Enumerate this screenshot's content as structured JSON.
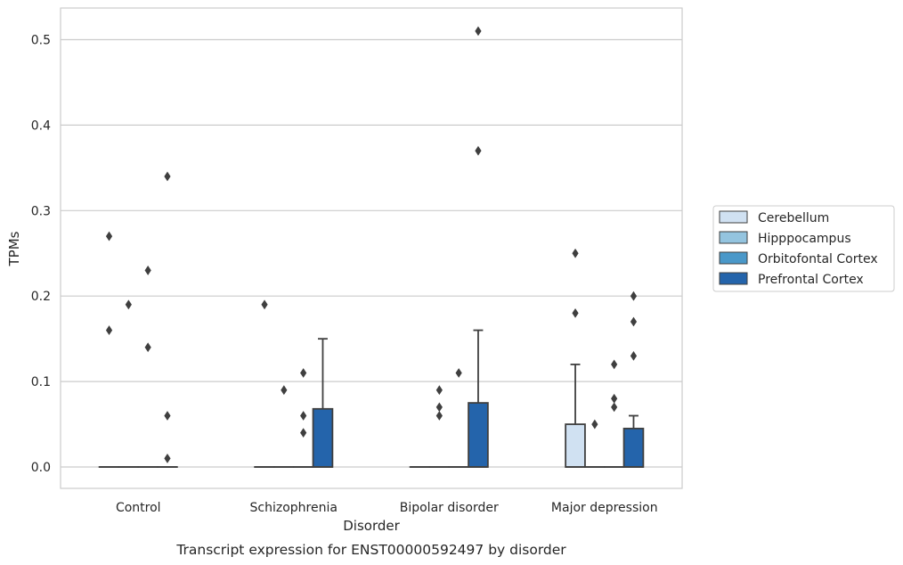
{
  "caption": "Transcript expression for ENST00000592497 by disorder",
  "chart_data": {
    "type": "box",
    "xlabel": "Disorder",
    "ylabel": "TPMs",
    "ylim": [
      -0.025,
      0.537
    ],
    "yticks": [
      "0.0",
      "0.1",
      "0.2",
      "0.3",
      "0.4",
      "0.5"
    ],
    "grid": true,
    "legend_position": "right",
    "categories": [
      "Control",
      "Schizophrenia",
      "Bipolar disorder",
      "Major depression"
    ],
    "series": [
      {
        "name": "Cerebellum",
        "color": "#d0e1f2"
      },
      {
        "name": "Hipppocampus",
        "color": "#94c4df"
      },
      {
        "name": "Orbitofontal Cortex",
        "color": "#4a98c9"
      },
      {
        "name": "Prefrontal Cortex",
        "color": "#2464ab"
      }
    ],
    "boxes": [
      {
        "category": "Control",
        "series": "Cerebellum",
        "q1": 0,
        "median": 0,
        "q3": 0,
        "whisker_low": 0,
        "whisker_high": 0,
        "outliers": [
          0.16,
          0.27
        ]
      },
      {
        "category": "Control",
        "series": "Hipppocampus",
        "q1": 0,
        "median": 0,
        "q3": 0,
        "whisker_low": 0,
        "whisker_high": 0,
        "outliers": [
          0.19
        ]
      },
      {
        "category": "Control",
        "series": "Orbitofontal Cortex",
        "q1": 0,
        "median": 0,
        "q3": 0,
        "whisker_low": 0,
        "whisker_high": 0,
        "outliers": [
          0.14,
          0.23
        ]
      },
      {
        "category": "Control",
        "series": "Prefrontal Cortex",
        "q1": 0,
        "median": 0,
        "q3": 0,
        "whisker_low": 0,
        "whisker_high": 0,
        "outliers": [
          0.01,
          0.06,
          0.34
        ]
      },
      {
        "category": "Schizophrenia",
        "series": "Cerebellum",
        "q1": 0,
        "median": 0,
        "q3": 0,
        "whisker_low": 0,
        "whisker_high": 0,
        "outliers": [
          0.19
        ]
      },
      {
        "category": "Schizophrenia",
        "series": "Hipppocampus",
        "q1": 0,
        "median": 0,
        "q3": 0,
        "whisker_low": 0,
        "whisker_high": 0,
        "outliers": [
          0.09
        ]
      },
      {
        "category": "Schizophrenia",
        "series": "Orbitofontal Cortex",
        "q1": 0,
        "median": 0,
        "q3": 0,
        "whisker_low": 0,
        "whisker_high": 0,
        "outliers": [
          0.04,
          0.06,
          0.11
        ]
      },
      {
        "category": "Schizophrenia",
        "series": "Prefrontal Cortex",
        "q1": 0,
        "median": 0,
        "q3": 0.068,
        "whisker_low": 0,
        "whisker_high": 0.15,
        "outliers": []
      },
      {
        "category": "Bipolar disorder",
        "series": "Cerebellum",
        "q1": 0,
        "median": 0,
        "q3": 0,
        "whisker_low": 0,
        "whisker_high": 0,
        "outliers": []
      },
      {
        "category": "Bipolar disorder",
        "series": "Hipppocampus",
        "q1": 0,
        "median": 0,
        "q3": 0,
        "whisker_low": 0,
        "whisker_high": 0,
        "outliers": [
          0.06,
          0.07,
          0.09
        ]
      },
      {
        "category": "Bipolar disorder",
        "series": "Orbitofontal Cortex",
        "q1": 0,
        "median": 0,
        "q3": 0,
        "whisker_low": 0,
        "whisker_high": 0,
        "outliers": [
          0.11
        ]
      },
      {
        "category": "Bipolar disorder",
        "series": "Prefrontal Cortex",
        "q1": 0,
        "median": 0,
        "q3": 0.075,
        "whisker_low": 0,
        "whisker_high": 0.16,
        "outliers": [
          0.37,
          0.51
        ]
      },
      {
        "category": "Major depression",
        "series": "Cerebellum",
        "q1": 0,
        "median": 0,
        "q3": 0.05,
        "whisker_low": 0,
        "whisker_high": 0.12,
        "outliers": [
          0.18,
          0.25
        ]
      },
      {
        "category": "Major depression",
        "series": "Hipppocampus",
        "q1": 0,
        "median": 0,
        "q3": 0,
        "whisker_low": 0,
        "whisker_high": 0,
        "outliers": [
          0.05
        ]
      },
      {
        "category": "Major depression",
        "series": "Orbitofontal Cortex",
        "q1": 0,
        "median": 0,
        "q3": 0,
        "whisker_low": 0,
        "whisker_high": 0,
        "outliers": [
          0.07,
          0.08,
          0.12
        ]
      },
      {
        "category": "Major depression",
        "series": "Prefrontal Cortex",
        "q1": 0,
        "median": 0,
        "q3": 0.045,
        "whisker_low": 0,
        "whisker_high": 0.06,
        "outliers": [
          0.13,
          0.17,
          0.2
        ]
      }
    ]
  }
}
